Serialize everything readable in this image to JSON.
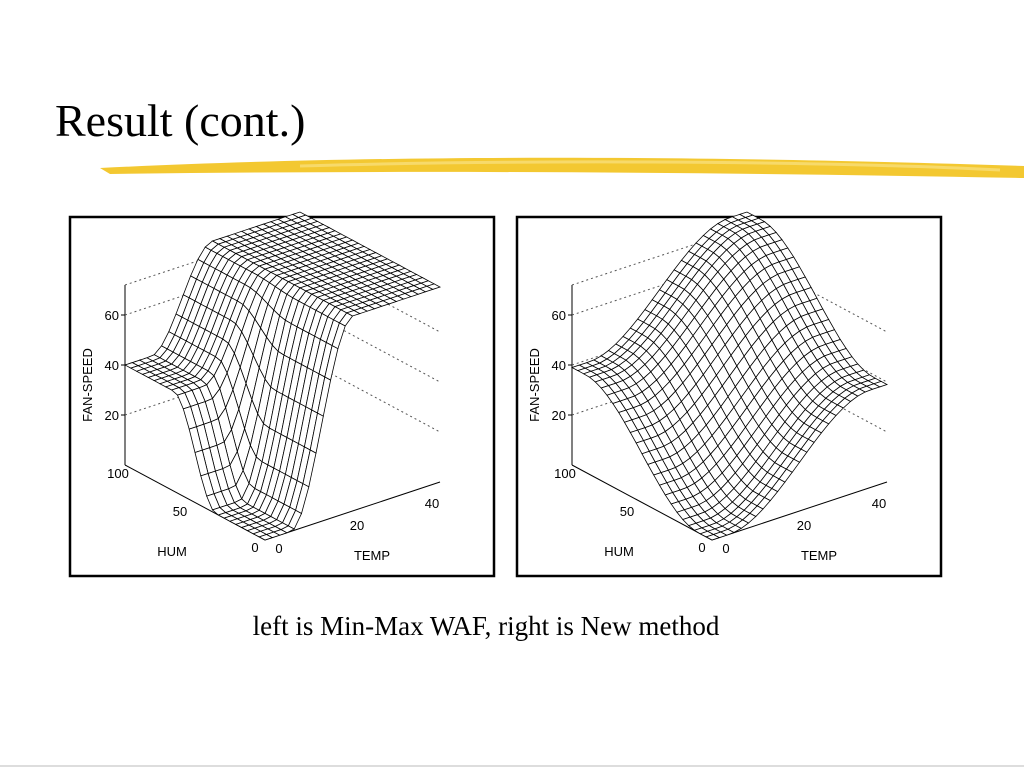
{
  "slide": {
    "title": "Result (cont.)",
    "caption": "left is Min-Max WAF, right is New method"
  },
  "figures": [
    {
      "z_label": "FAN-SPEED",
      "z_ticks": [
        "20",
        "40",
        "60"
      ],
      "hum_label": "HUM",
      "hum_ticks": [
        "0",
        "50",
        "100"
      ],
      "temp_label": "TEMP",
      "temp_ticks": [
        "0",
        "20",
        "40"
      ]
    },
    {
      "z_label": "FAN-SPEED",
      "z_ticks": [
        "20",
        "40",
        "60"
      ],
      "hum_label": "HUM",
      "hum_ticks": [
        "0",
        "50",
        "100"
      ],
      "temp_label": "TEMP",
      "temp_ticks": [
        "0",
        "20",
        "40"
      ]
    }
  ]
}
